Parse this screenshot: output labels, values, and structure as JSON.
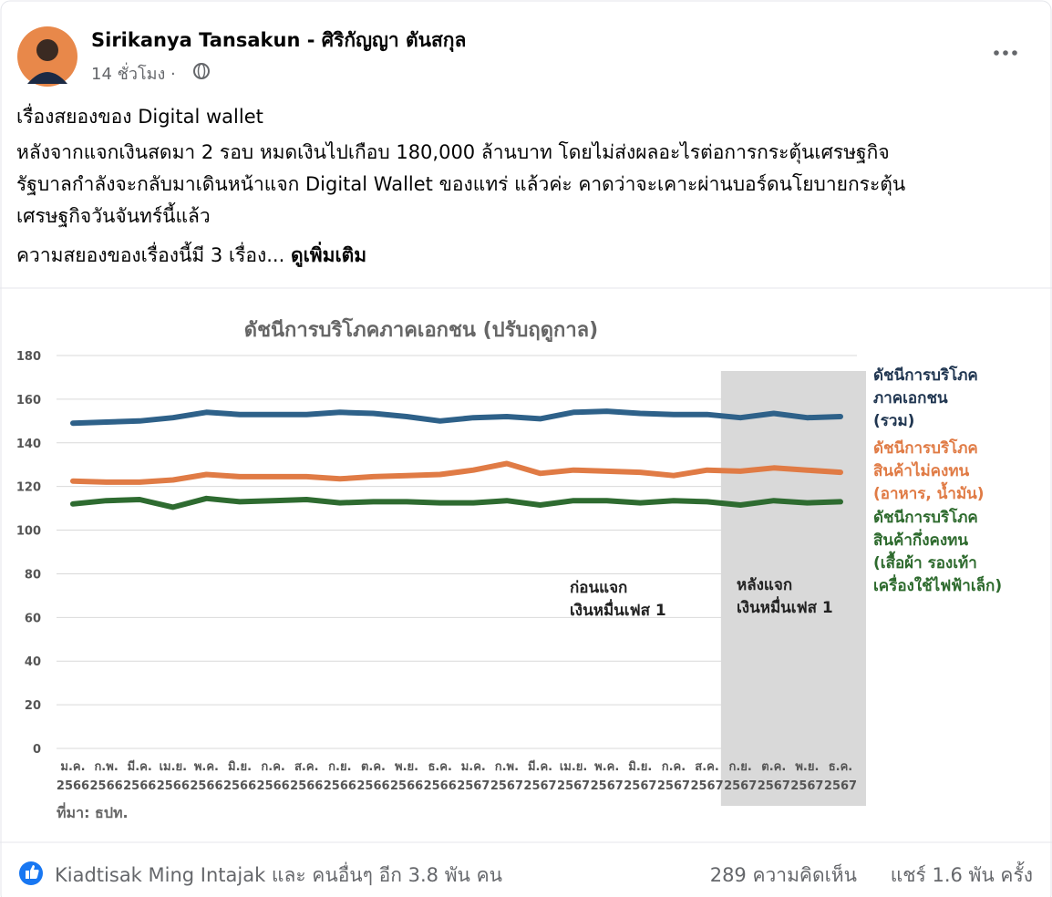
{
  "post": {
    "author": "Sirikanya Tansakun - ศิริกัญญา ตันสกุล",
    "time": "14 ชั่วโมง ·",
    "headline": "เรื่องสยองของ Digital wallet",
    "paragraph_lines": [
      "หลังจากแจกเงินสดมา 2 รอบ หมดเงินไปเกือบ 180,000 ล้านบาท โดยไม่ส่งผลอะไรต่อการกระตุ้นเศรษฐกิจ",
      "รัฐบาลกำลังจะกลับมาเดินหน้าแจก Digital Wallet ของแทร่ แล้วค่ะ คาดว่าจะเคาะผ่านบอร์ดนโยบายกระตุ้น",
      "เศรษฐกิจวันจันทร์นี้แล้ว"
    ],
    "teaser": "ความสยองของเรื่องนี้มี 3 เรื่อง...",
    "see_more": "ดูเพิ่มเติม",
    "reactions": "Kiadtisak Ming Intajak และ คนอื่นๆ อีก 3.8 พัน คน",
    "comments": "289 ความคิดเห็น",
    "shares": "แชร์ 1.6 พัน ครั้ง"
  },
  "chart_data": {
    "type": "line",
    "title": "ดัชนีการบริโภคภาคเอกชน (ปรับฤดูกาล)",
    "source": "ที่มา: ธปท.",
    "categories": [
      [
        "ม.ค.",
        "2566"
      ],
      [
        "ก.พ.",
        "2566"
      ],
      [
        "มี.ค.",
        "2566"
      ],
      [
        "เม.ย.",
        "2566"
      ],
      [
        "พ.ค.",
        "2566"
      ],
      [
        "มิ.ย.",
        "2566"
      ],
      [
        "ก.ค.",
        "2566"
      ],
      [
        "ส.ค.",
        "2566"
      ],
      [
        "ก.ย.",
        "2566"
      ],
      [
        "ต.ค.",
        "2566"
      ],
      [
        "พ.ย.",
        "2566"
      ],
      [
        "ธ.ค.",
        "2566"
      ],
      [
        "ม.ค.",
        "2567"
      ],
      [
        "ก.พ.",
        "2567"
      ],
      [
        "มี.ค.",
        "2567"
      ],
      [
        "เม.ย.",
        "2567"
      ],
      [
        "พ.ค.",
        "2567"
      ],
      [
        "มิ.ย.",
        "2567"
      ],
      [
        "ก.ค.",
        "2567"
      ],
      [
        "ส.ค.",
        "2567"
      ],
      [
        "ก.ย.",
        "2567"
      ],
      [
        "ต.ค.",
        "2567"
      ],
      [
        "พ.ย.",
        "2567"
      ],
      [
        "ธ.ค.",
        "2567"
      ]
    ],
    "series": [
      {
        "name": "ดัชนีการบริโภค\nภาคเอกชน\n(รวม)",
        "color": "#2e6189",
        "legend_color": "#1f3550",
        "values": [
          149,
          149.5,
          150,
          151.5,
          154,
          153,
          153,
          153,
          154,
          153.5,
          152,
          150,
          151.5,
          152,
          151,
          154,
          154.5,
          153.5,
          153,
          153,
          151.5,
          153.5,
          151.5,
          152
        ]
      },
      {
        "name": "ดัชนีการบริโภค\nสินค้าไม่คงทน\n(อาหาร, น้ำมัน)",
        "color": "#e07b45",
        "legend_color": "#e07b45",
        "values": [
          122.5,
          122,
          122,
          123,
          125.5,
          124.5,
          124.5,
          124.5,
          123.5,
          124.5,
          125,
          125.5,
          127.5,
          130.5,
          126,
          127.5,
          127,
          126.5,
          125,
          127.5,
          127,
          128.5,
          127.5,
          126.5
        ]
      },
      {
        "name": "ดัชนีการบริโภค\nสินค้ากึ่งคงทน\n(เสื้อผ้า รองเท้า\nเครื่องใช้ไฟฟ้าเล็ก)",
        "color": "#2e6b30",
        "legend_color": "#2d6a2d",
        "values": [
          112,
          113.5,
          114,
          110.5,
          114.5,
          113,
          113.5,
          114,
          112.5,
          113,
          113,
          112.5,
          112.5,
          113.5,
          111.5,
          113.5,
          113.5,
          112.5,
          113.5,
          113,
          111.5,
          113.5,
          112.5,
          113
        ]
      }
    ],
    "ylim": [
      0,
      180
    ],
    "yticks": [
      0,
      20,
      40,
      60,
      80,
      100,
      120,
      140,
      160,
      180
    ],
    "grid": true,
    "highlight": {
      "from": "ก.ย. 2567",
      "start_index": 20,
      "color": "#d9d9d9"
    },
    "annotations": [
      "ก่อนแจก\nเงินหมื่นเฟส 1",
      "หลังแจก\nเงินหมื่นเฟส 1"
    ]
  }
}
